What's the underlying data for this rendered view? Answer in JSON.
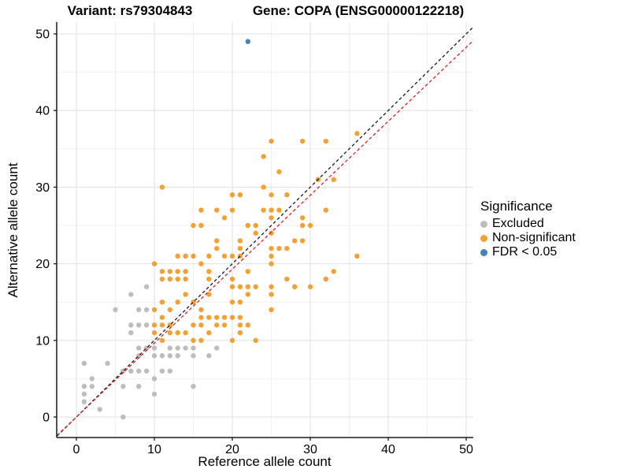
{
  "titles": {
    "left": "Variant: rs79304843",
    "right": "Gene: COPA (ENSG00000122218)"
  },
  "axes": {
    "x": {
      "label": "Reference allele count",
      "ticks": [
        0,
        10,
        20,
        30,
        40,
        50
      ],
      "range": [
        -2.5,
        50.9
      ]
    },
    "y": {
      "label": "Alternative allele count",
      "ticks": [
        0,
        10,
        20,
        30,
        40,
        50
      ],
      "range": [
        -2.7,
        51.5
      ]
    }
  },
  "legend": {
    "title": "Significance",
    "items": [
      {
        "label": "Excluded",
        "color": "#BDBDBD"
      },
      {
        "label": "Non-significant",
        "color": "#F5A033"
      },
      {
        "label": "FDR < 0.05",
        "color": "#4682B4"
      }
    ]
  },
  "colors": {
    "grid_major": "#E2E2E2",
    "grid_minor": "#F0F0F0",
    "axis_line": "#1A1A1A",
    "identity_line": "#1A1A1A",
    "ratio_line": "#E02020",
    "text": "#000000"
  },
  "chart_data": {
    "type": "scatter",
    "xlabel": "Reference allele count",
    "ylabel": "Alternative allele count",
    "xlim": [
      -2.5,
      50.9
    ],
    "ylim": [
      -2.7,
      51.5
    ],
    "grid": {
      "major": [
        0,
        10,
        20,
        30,
        40,
        50
      ],
      "minor": [
        5,
        15,
        25,
        35,
        45
      ]
    },
    "legend_position": "right",
    "series": [
      {
        "name": "Excluded",
        "color": "#BDBDBD",
        "points": [
          [
            1,
            2
          ],
          [
            1,
            3
          ],
          [
            1,
            4
          ],
          [
            2,
            4
          ],
          [
            2,
            5
          ],
          [
            3,
            1
          ],
          [
            6,
            0
          ],
          [
            1,
            7
          ],
          [
            4,
            7
          ],
          [
            6,
            6
          ],
          [
            7,
            6
          ],
          [
            8,
            6
          ],
          [
            9,
            6
          ],
          [
            11,
            6
          ],
          [
            12,
            6
          ],
          [
            6,
            4
          ],
          [
            8,
            4
          ],
          [
            10,
            5
          ],
          [
            10,
            3
          ],
          [
            15,
            4
          ],
          [
            8,
            8
          ],
          [
            10,
            8
          ],
          [
            11,
            8
          ],
          [
            12,
            8
          ],
          [
            13,
            8
          ],
          [
            15,
            8
          ],
          [
            17,
            8
          ],
          [
            8,
            9
          ],
          [
            9,
            9
          ],
          [
            10,
            9
          ],
          [
            12,
            9
          ],
          [
            13,
            9
          ],
          [
            14,
            9
          ],
          [
            15,
            9
          ],
          [
            18,
            9
          ],
          [
            7,
            11
          ],
          [
            7,
            12
          ],
          [
            8,
            12
          ],
          [
            9,
            12
          ],
          [
            5,
            14
          ],
          [
            8,
            14
          ],
          [
            9,
            14
          ],
          [
            7,
            16
          ],
          [
            9,
            17
          ]
        ]
      },
      {
        "name": "Non-significant",
        "color": "#F5A033",
        "points": [
          [
            11,
            10
          ],
          [
            15,
            10
          ],
          [
            16,
            10
          ],
          [
            20,
            10
          ],
          [
            23,
            10
          ],
          [
            10,
            11
          ],
          [
            12,
            11
          ],
          [
            13,
            11
          ],
          [
            14,
            11
          ],
          [
            17,
            11
          ],
          [
            21,
            11
          ],
          [
            10,
            12
          ],
          [
            11,
            12
          ],
          [
            12,
            12
          ],
          [
            15,
            12
          ],
          [
            16,
            12
          ],
          [
            18,
            12
          ],
          [
            19,
            12
          ],
          [
            21,
            12
          ],
          [
            22,
            12
          ],
          [
            11,
            13
          ],
          [
            16,
            13
          ],
          [
            17,
            13
          ],
          [
            18,
            13
          ],
          [
            19,
            13
          ],
          [
            20,
            13
          ],
          [
            21,
            13
          ],
          [
            10,
            14
          ],
          [
            12,
            14
          ],
          [
            16,
            14
          ],
          [
            25,
            14
          ],
          [
            11,
            15
          ],
          [
            13,
            15
          ],
          [
            15,
            15
          ],
          [
            20,
            15
          ],
          [
            21,
            15
          ],
          [
            14,
            16
          ],
          [
            17,
            16
          ],
          [
            22,
            16
          ],
          [
            25,
            16
          ],
          [
            20,
            17
          ],
          [
            21,
            17
          ],
          [
            22,
            17
          ],
          [
            23,
            17
          ],
          [
            25,
            17
          ],
          [
            28,
            17
          ],
          [
            30,
            17
          ],
          [
            11,
            18
          ],
          [
            12,
            18
          ],
          [
            13,
            18
          ],
          [
            14,
            18
          ],
          [
            17,
            18
          ],
          [
            20,
            18
          ],
          [
            27,
            18
          ],
          [
            32,
            18
          ],
          [
            11,
            19
          ],
          [
            12,
            19
          ],
          [
            13,
            19
          ],
          [
            14,
            19
          ],
          [
            17,
            19
          ],
          [
            22,
            19
          ],
          [
            33,
            19
          ],
          [
            10,
            20
          ],
          [
            16,
            20
          ],
          [
            25,
            20
          ],
          [
            13,
            21
          ],
          [
            14,
            21
          ],
          [
            15,
            21
          ],
          [
            17,
            21
          ],
          [
            19,
            21
          ],
          [
            20,
            21
          ],
          [
            21,
            21
          ],
          [
            25,
            21
          ],
          [
            36,
            21
          ],
          [
            18,
            22
          ],
          [
            21,
            22
          ],
          [
            25,
            22
          ],
          [
            26,
            22
          ],
          [
            27,
            22
          ],
          [
            18,
            23
          ],
          [
            21,
            23
          ],
          [
            28,
            23
          ],
          [
            29,
            23
          ],
          [
            23,
            24
          ],
          [
            25,
            24
          ],
          [
            15,
            25
          ],
          [
            16,
            25
          ],
          [
            22,
            25
          ],
          [
            23,
            25
          ],
          [
            29,
            25
          ],
          [
            30,
            25
          ],
          [
            19,
            26
          ],
          [
            25,
            26
          ],
          [
            29,
            26
          ],
          [
            16,
            27
          ],
          [
            18,
            27
          ],
          [
            20,
            27
          ],
          [
            24,
            27
          ],
          [
            25,
            27
          ],
          [
            26,
            27
          ],
          [
            32,
            27
          ],
          [
            20,
            29
          ],
          [
            21,
            29
          ],
          [
            25,
            29
          ],
          [
            27,
            29
          ],
          [
            11,
            30
          ],
          [
            24,
            30
          ],
          [
            31,
            31
          ],
          [
            33,
            31
          ],
          [
            26,
            32
          ],
          [
            24,
            34
          ],
          [
            25,
            36
          ],
          [
            29,
            36
          ],
          [
            32,
            36
          ],
          [
            36,
            37
          ]
        ]
      },
      {
        "name": "FDR < 0.05",
        "color": "#4682B4",
        "points": [
          [
            22,
            49
          ]
        ]
      }
    ],
    "lines": [
      {
        "name": "identity",
        "slope": 1,
        "intercept": 0,
        "color": "#1A1A1A",
        "style": "dashed"
      },
      {
        "name": "expected-ratio",
        "slope": 0.965,
        "intercept": 0,
        "color": "#E02020",
        "style": "dashed"
      }
    ]
  }
}
